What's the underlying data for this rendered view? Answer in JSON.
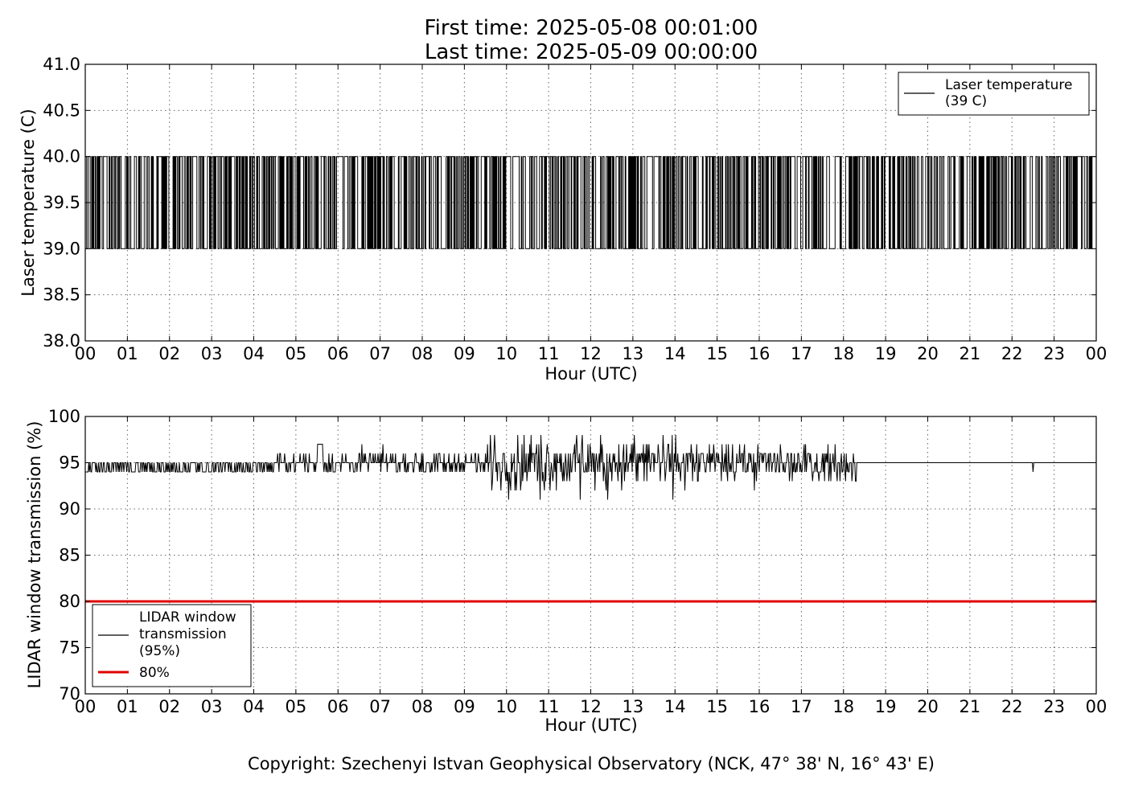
{
  "title_line1": "First time: 2025-05-08 00:01:00",
  "title_line2": "Last time: 2025-05-09 00:00:00",
  "copyright": "Copyright: Szechenyi Istvan Geophysical Observatory (NCK, 47° 38' N, 16° 43' E)",
  "colors": {
    "series_line": "#000000",
    "threshold_line": "#e00000",
    "background": "#ffffff"
  },
  "chart_data": [
    {
      "type": "line",
      "xlabel": "Hour (UTC)",
      "ylabel": "Laser temperature (C)",
      "xlim": [
        0,
        24
      ],
      "ylim": [
        38.0,
        41.0
      ],
      "x_ticks": [
        "00",
        "01",
        "02",
        "03",
        "04",
        "05",
        "06",
        "07",
        "08",
        "09",
        "10",
        "11",
        "12",
        "13",
        "14",
        "15",
        "16",
        "17",
        "18",
        "19",
        "20",
        "21",
        "22",
        "23",
        "00"
      ],
      "y_ticks": [
        "38.0",
        "38.5",
        "39.0",
        "39.5",
        "40.0",
        "40.5",
        "41.0"
      ],
      "grid": true,
      "legend_position": "top-right",
      "series": [
        {
          "name": "Laser temperature (39 C)",
          "legend_lines": [
            "Laser temperature",
            "(39 C)"
          ],
          "values_min": 39.0,
          "values_max": 40.0,
          "sampling": "1 min",
          "pattern": "frequent toggling between 39.0 and 40.0 throughout the day"
        }
      ]
    },
    {
      "type": "line",
      "xlabel": "Hour (UTC)",
      "ylabel": "LIDAR window transmission (%)",
      "xlim": [
        0,
        24
      ],
      "ylim": [
        70,
        100
      ],
      "x_ticks": [
        "00",
        "01",
        "02",
        "03",
        "04",
        "05",
        "06",
        "07",
        "08",
        "09",
        "10",
        "11",
        "12",
        "13",
        "14",
        "15",
        "16",
        "17",
        "18",
        "19",
        "20",
        "21",
        "22",
        "23",
        "00"
      ],
      "y_ticks": [
        "70",
        "75",
        "80",
        "85",
        "90",
        "95",
        "100"
      ],
      "grid": true,
      "legend_position": "bottom-left",
      "series": [
        {
          "name": "LIDAR window transmission (95%)",
          "legend_lines": [
            "LIDAR window",
            "transmission",
            "(95%)"
          ],
          "segments": [
            {
              "x_start": 0.0,
              "x_end": 4.5,
              "min": 94,
              "max": 95
            },
            {
              "x_start": 4.5,
              "x_end": 5.6,
              "min": 94,
              "max": 96
            },
            {
              "x_start": 5.6,
              "x_end": 9.5,
              "min": 94,
              "max": 97
            },
            {
              "x_start": 9.5,
              "x_end": 14.5,
              "min": 91,
              "max": 98
            },
            {
              "x_start": 14.5,
              "x_end": 18.3,
              "min": 92,
              "max": 97
            },
            {
              "x_start": 18.3,
              "x_end": 24.0,
              "min": 95,
              "max": 95
            }
          ],
          "spikes": [
            {
              "x": 5.55,
              "y": 97
            },
            {
              "x": 10.8,
              "y": 91
            },
            {
              "x": 11.75,
              "y": 91
            },
            {
              "x": 12.4,
              "y": 98
            },
            {
              "x": 12.4,
              "y": 91
            },
            {
              "x": 22.5,
              "y": 94
            }
          ]
        },
        {
          "name": "80%",
          "legend_lines": [
            "80%"
          ],
          "x": [
            0,
            24
          ],
          "values": [
            80,
            80
          ]
        }
      ]
    }
  ]
}
